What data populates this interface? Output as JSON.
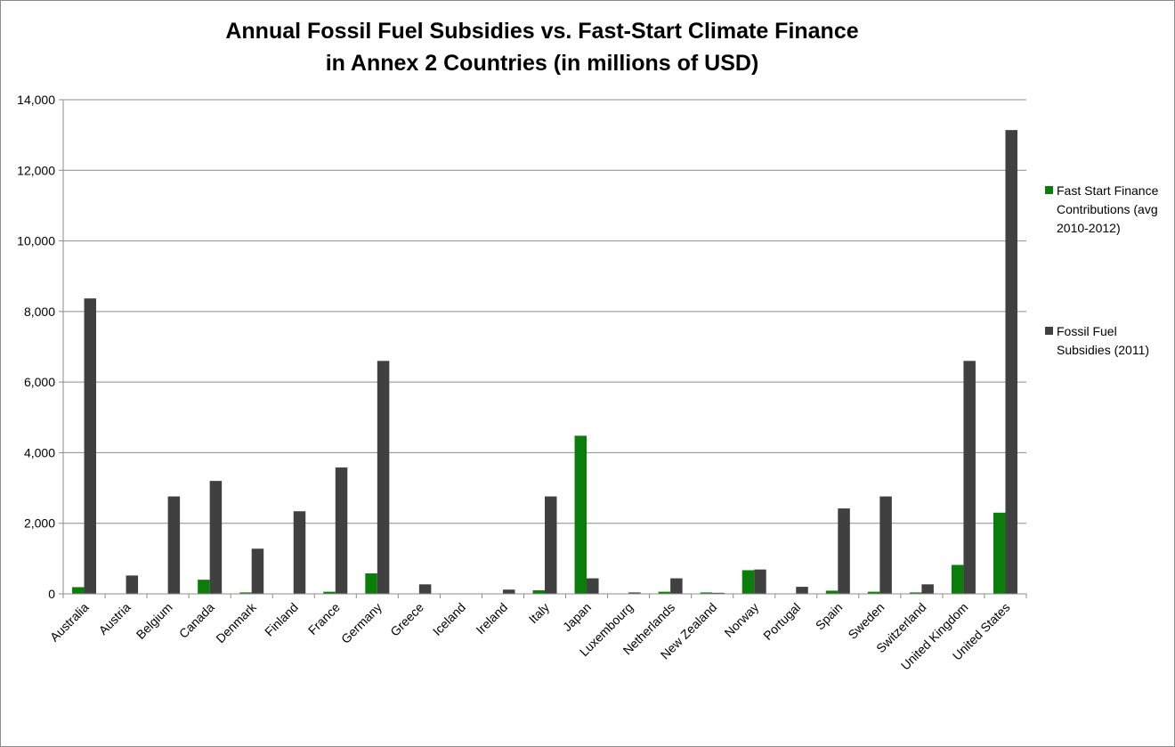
{
  "chart_data": {
    "type": "bar",
    "title": [
      "Annual Fossil Fuel Subsidies vs. Fast-Start Climate Finance",
      "in Annex 2 Countries (in millions of USD)"
    ],
    "xlabel": "",
    "ylabel": "",
    "ylim": [
      0,
      14000
    ],
    "yticks": [
      0,
      2000,
      4000,
      6000,
      8000,
      10000,
      12000,
      14000
    ],
    "ytick_labels": [
      "0",
      "2,000",
      "4,000",
      "6,000",
      "8,000",
      "10,000",
      "12,000",
      "14,000"
    ],
    "grid": true,
    "legend_position": "right",
    "categories": [
      "Australia",
      "Austria",
      "Belgium",
      "Canada",
      "Denmark",
      "Finland",
      "France",
      "Germany",
      "Greece",
      "Iceland",
      "Ireland",
      "Italy",
      "Japan",
      "Luxembourg",
      "Netherlands",
      "New Zealand",
      "Norway",
      "Portugal",
      "Spain",
      "Sweden",
      "Switzerland",
      "United Kingdom",
      "United States"
    ],
    "series": [
      {
        "name": "Fast Start Finance Contributions (avg 2010-2012)",
        "legend_lines": [
          "Fast Start Finance",
          "Contributions (avg",
          "2010-2012)"
        ],
        "color": "#0a7d0a",
        "values": [
          190,
          0,
          0,
          400,
          40,
          0,
          60,
          580,
          0,
          0,
          0,
          100,
          4480,
          0,
          60,
          40,
          670,
          0,
          90,
          60,
          40,
          820,
          2300
        ]
      },
      {
        "name": "Fossil Fuel Subsidies (2011)",
        "legend_lines": [
          "Fossil Fuel",
          "Subsidies (2011)"
        ],
        "color": "#404040",
        "values": [
          8370,
          520,
          2760,
          3200,
          1280,
          2340,
          3580,
          6600,
          270,
          0,
          120,
          2760,
          440,
          40,
          440,
          30,
          690,
          200,
          2420,
          2760,
          270,
          6600,
          13140
        ]
      }
    ]
  }
}
